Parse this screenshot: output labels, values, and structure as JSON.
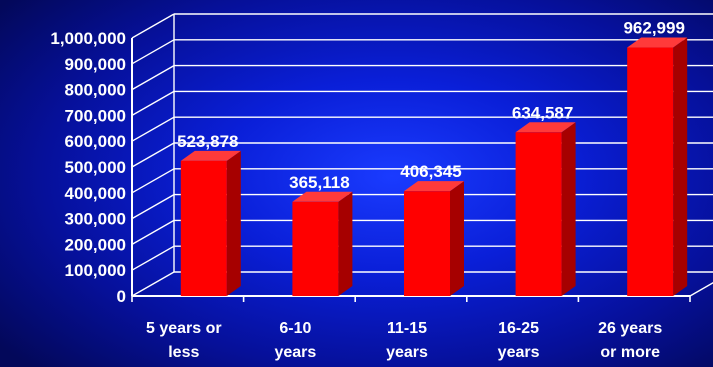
{
  "chart_data": {
    "type": "bar",
    "categories": [
      [
        "5 years or",
        "less"
      ],
      [
        "6-10",
        "years"
      ],
      [
        "11-15",
        "years"
      ],
      [
        "16-25",
        "years"
      ],
      [
        "26 years",
        "or more"
      ]
    ],
    "values": [
      523878,
      365118,
      406345,
      634587,
      962999
    ],
    "value_labels": [
      "523,878",
      "365,118",
      "406,345",
      "634,587",
      "962,999"
    ],
    "ylim": [
      0,
      1000000
    ],
    "yticks": [
      0,
      100000,
      200000,
      300000,
      400000,
      500000,
      600000,
      700000,
      800000,
      900000,
      1000000
    ],
    "ytick_labels": [
      "0",
      "100,000",
      "200,000",
      "300,000",
      "400,000",
      "500,000",
      "600,000",
      "700,000",
      "800,000",
      "900,000",
      "1,000,000"
    ],
    "grid": true,
    "bar_style": "3d",
    "colors": {
      "bar_front": "#ff0000",
      "bar_side": "#a60000",
      "bar_top": "#ff3a3a",
      "grid": "#ffffff",
      "text": "#ffffff"
    }
  }
}
